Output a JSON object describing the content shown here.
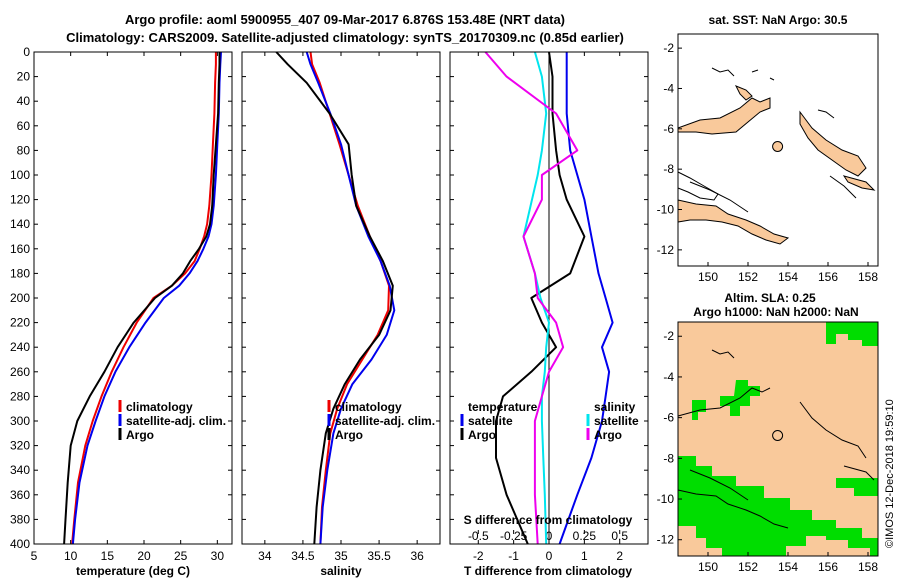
{
  "header": {
    "title_line1": "Argo profile: aoml 5900955_407 09-Mar-2017 6.876S 153.48E (NRT data)",
    "title_line2": "Climatology: CARS2009. Satellite-adjusted climatology: synTS_20170309.nc (0.85d earlier)"
  },
  "credit": "©IMOS 12-Dec-2018 19:59:10",
  "colors": {
    "climatology": "#ee0000",
    "satellite": "#0000ee",
    "argo": "#000000",
    "sat_salinity": "#00e5ee",
    "argo_salinity": "#ee00ee",
    "land": "#f9c99b",
    "green": "#00dd00"
  },
  "chart_data": [
    {
      "type": "line",
      "panel": "temperature",
      "xlabel": "temperature (deg C)",
      "xlim": [
        5,
        32
      ],
      "ylim": [
        400,
        0
      ],
      "xticks": [
        5,
        10,
        15,
        20,
        25,
        30
      ],
      "yticks": [
        0,
        20,
        40,
        60,
        80,
        100,
        120,
        140,
        160,
        180,
        200,
        220,
        240,
        260,
        280,
        300,
        320,
        340,
        360,
        380,
        400
      ],
      "legend": [
        "climatology",
        "satellite-adj. clim.",
        "Argo"
      ],
      "series": [
        {
          "name": "climatology",
          "color": "#ee0000",
          "x": [
            29.8,
            29.8,
            29.7,
            29.6,
            29.4,
            29.2,
            28.9,
            28.6,
            28.2,
            27.6,
            26.9,
            25.6,
            23.8,
            21.3,
            19.0,
            17.2,
            15.6,
            14.2,
            13.0,
            12.0,
            11.0,
            10.5,
            10.2
          ],
          "depth": [
            0,
            10,
            25,
            50,
            75,
            100,
            125,
            140,
            150,
            160,
            170,
            180,
            190,
            200,
            220,
            240,
            260,
            280,
            300,
            320,
            350,
            380,
            400
          ]
        },
        {
          "name": "satellite-adj. clim.",
          "color": "#0000ee",
          "x": [
            30.5,
            30.4,
            30.3,
            30.2,
            30.0,
            29.8,
            29.5,
            29.2,
            28.8,
            28.1,
            27.3,
            26.2,
            24.8,
            22.7,
            20.2,
            18.0,
            16.1,
            14.6,
            13.4,
            12.3,
            11.2,
            10.6,
            10.3
          ],
          "depth": [
            0,
            10,
            25,
            50,
            75,
            100,
            125,
            140,
            150,
            160,
            170,
            180,
            190,
            200,
            220,
            240,
            260,
            280,
            300,
            320,
            350,
            380,
            400
          ]
        },
        {
          "name": "Argo",
          "color": "#000000",
          "x": [
            30.3,
            30.3,
            30.2,
            30.1,
            29.8,
            29.5,
            29.3,
            29.0,
            28.5,
            27.5,
            26.3,
            25.3,
            23.8,
            21.5,
            18.6,
            16.4,
            14.6,
            12.6,
            10.9,
            10.0,
            9.6,
            9.3,
            9.1
          ],
          "depth": [
            0,
            10,
            25,
            50,
            75,
            100,
            125,
            140,
            150,
            160,
            170,
            180,
            190,
            200,
            220,
            240,
            260,
            280,
            300,
            320,
            350,
            380,
            400
          ]
        }
      ]
    },
    {
      "type": "line",
      "panel": "salinity",
      "xlabel": "salinity",
      "xlim": [
        33.7,
        36.3
      ],
      "ylim": [
        400,
        0
      ],
      "xticks": [
        34,
        34.5,
        35,
        35.5,
        36
      ],
      "legend": [
        "climatology",
        "satellite-adj. clim.",
        "Argo"
      ],
      "series": [
        {
          "name": "climatology",
          "color": "#ee0000",
          "x": [
            34.6,
            34.62,
            34.72,
            34.85,
            34.98,
            35.1,
            35.22,
            35.38,
            35.52,
            35.63,
            35.62,
            35.48,
            35.28,
            35.08,
            34.95,
            34.86,
            34.8,
            34.75,
            34.73
          ],
          "depth": [
            0,
            10,
            25,
            50,
            75,
            100,
            125,
            150,
            170,
            190,
            210,
            230,
            250,
            270,
            290,
            310,
            340,
            370,
            400
          ]
        },
        {
          "name": "satellite-adj. clim.",
          "color": "#0000ee",
          "x": [
            34.55,
            34.6,
            34.7,
            34.86,
            35.0,
            35.1,
            35.2,
            35.36,
            35.52,
            35.64,
            35.7,
            35.6,
            35.4,
            35.15,
            35.0,
            34.9,
            34.82,
            34.76,
            34.73
          ],
          "depth": [
            0,
            10,
            25,
            50,
            75,
            100,
            125,
            150,
            170,
            190,
            210,
            230,
            250,
            270,
            290,
            310,
            340,
            370,
            400
          ]
        },
        {
          "name": "Argo",
          "color": "#000000",
          "x": [
            34.15,
            34.3,
            34.55,
            34.85,
            35.1,
            35.14,
            35.2,
            35.38,
            35.55,
            35.68,
            35.65,
            35.5,
            35.25,
            35.05,
            34.9,
            34.8,
            34.73,
            34.68,
            34.65
          ],
          "depth": [
            0,
            10,
            25,
            50,
            75,
            100,
            125,
            150,
            170,
            190,
            210,
            230,
            250,
            270,
            290,
            310,
            340,
            370,
            400
          ]
        }
      ]
    },
    {
      "type": "line",
      "panel": "difference",
      "xlabel": "T difference from climatology",
      "xlabel_top": "S difference from climatology",
      "xlim": [
        -2.8,
        2.8
      ],
      "ylim": [
        400,
        0
      ],
      "xticks": [
        -2,
        -1,
        0,
        1,
        2
      ],
      "xticks_salinity": [
        -0.5,
        -0.25,
        0,
        0.25,
        0.5
      ],
      "legend_temperature_title": "temperature",
      "legend_salinity_title": "salinity",
      "legend": [
        "satellite",
        "Argo"
      ],
      "series": [
        {
          "name": "temperature satellite",
          "color": "#0000ee",
          "x": [
            0.5,
            0.5,
            0.5,
            0.6,
            0.8,
            1.0,
            1.2,
            1.4,
            1.6,
            1.8,
            1.5,
            1.7,
            1.6,
            1.5,
            1.2,
            0.8,
            0.3
          ],
          "depth": [
            0,
            20,
            50,
            80,
            100,
            120,
            150,
            180,
            200,
            220,
            240,
            260,
            280,
            300,
            330,
            360,
            400
          ]
        },
        {
          "name": "temperature Argo",
          "color": "#000000",
          "x": [
            0.0,
            0.1,
            0.1,
            0.2,
            0.3,
            0.5,
            1.0,
            0.6,
            -0.5,
            -0.2,
            0.2,
            -0.5,
            -1.3,
            -1.5,
            -1.5,
            -1.2,
            -0.6
          ],
          "depth": [
            0,
            20,
            50,
            80,
            100,
            120,
            150,
            180,
            200,
            220,
            240,
            260,
            280,
            300,
            330,
            360,
            400
          ]
        },
        {
          "name": "salinity satellite",
          "color": "#00e5ee",
          "x": [
            -0.1,
            -0.05,
            -0.02,
            -0.05,
            -0.08,
            -0.12,
            -0.18,
            -0.1,
            -0.06,
            0.0,
            -0.02,
            -0.03,
            -0.05,
            -0.05,
            -0.04,
            -0.03,
            -0.02
          ],
          "depth": [
            0,
            20,
            50,
            80,
            100,
            120,
            150,
            180,
            200,
            220,
            240,
            260,
            280,
            300,
            330,
            360,
            400
          ]
        },
        {
          "name": "salinity Argo",
          "color": "#ee00ee",
          "x": [
            -0.45,
            -0.3,
            0.05,
            0.2,
            -0.05,
            -0.05,
            -0.18,
            -0.1,
            -0.08,
            0.05,
            0.1,
            0.0,
            -0.05,
            -0.1,
            -0.1,
            -0.1,
            -0.08
          ],
          "depth": [
            0,
            20,
            50,
            80,
            100,
            120,
            150,
            180,
            200,
            220,
            240,
            260,
            280,
            300,
            330,
            360,
            400
          ]
        }
      ]
    }
  ],
  "maps": {
    "top": {
      "title": "sat. SST: NaN Argo: 30.5",
      "xticks": [
        150,
        152,
        154,
        156,
        158
      ],
      "yticks": [
        -2,
        -4,
        -6,
        -8,
        -10,
        -12
      ],
      "xlim": [
        148.5,
        158.5
      ],
      "ylim": [
        -12.8,
        -1.3
      ],
      "marker": [
        153.48,
        -6.876
      ]
    },
    "bottom": {
      "title_line1": "Altim. SLA: 0.25",
      "title_line2": "Argo h1000: NaN h2000: NaN",
      "xticks": [
        150,
        152,
        154,
        156,
        158
      ],
      "yticks": [
        -2,
        -4,
        -6,
        -8,
        -10,
        -12
      ],
      "xlim": [
        148.5,
        158.5
      ],
      "ylim": [
        -12.8,
        -1.3
      ],
      "marker": [
        153.48,
        -6.876
      ]
    }
  }
}
